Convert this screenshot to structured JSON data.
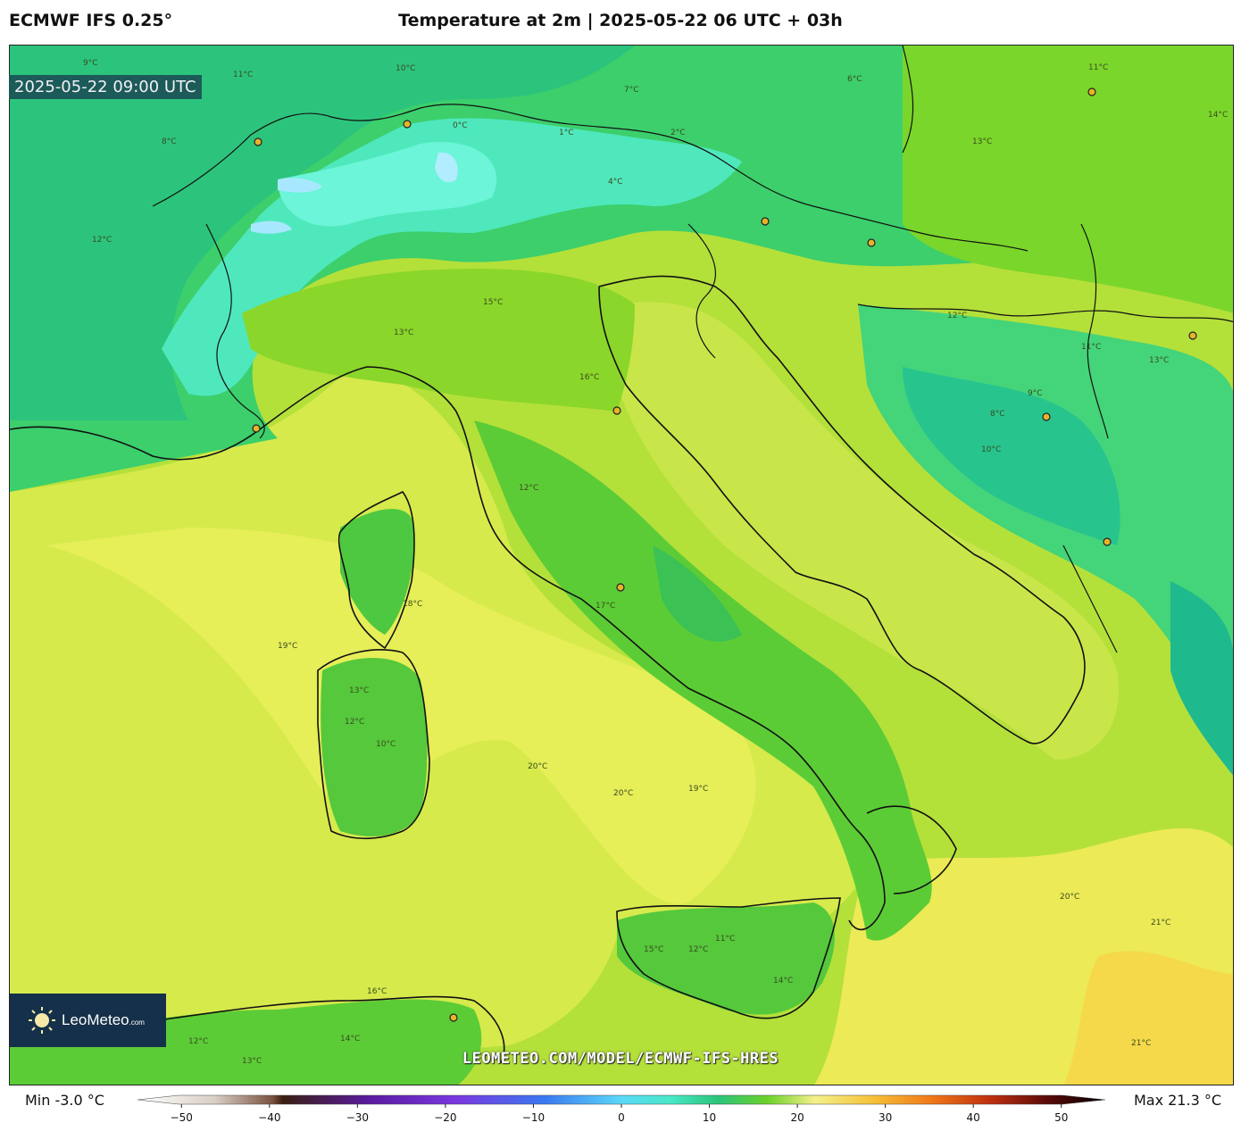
{
  "header": {
    "model": "ECMWF IFS 0.25°",
    "title": "Temperature at 2m | 2025-05-22 06 UTC + 03h"
  },
  "map": {
    "valid_time": "2025-05-22 09:00 UTC",
    "watermark": "LEOMETEO.COM/MODEL/ECMWF-IFS-HRES",
    "logo": {
      "brand": "LeoMeteo",
      "suffix": ".com"
    },
    "contour_labels": [
      "10°C",
      "9°C",
      "8°C",
      "11°C",
      "0°C",
      "1°C",
      "2°C",
      "4°C",
      "7°C",
      "6°C",
      "11°C",
      "12°C",
      "13°C",
      "14°C",
      "15°C",
      "16°C",
      "13°C",
      "12°C",
      "9°C",
      "8°C",
      "10°C",
      "11°C",
      "12°C",
      "13°C",
      "17°C",
      "18°C",
      "19°C",
      "20°C",
      "19°C",
      "20°C",
      "21°C",
      "21°C",
      "20°C",
      "15°C",
      "14°C",
      "12°C",
      "11°C",
      "10°C",
      "13°C",
      "12°C",
      "14°C",
      "16°C",
      "13°C",
      "12°C"
    ],
    "colors": {
      "cold": "#4df2c8",
      "cool": "#22c98c",
      "mild": "#6fd21f",
      "warm": "#c6e63a",
      "sea": "#e9ee5a",
      "hot": "#f5dc4a"
    }
  },
  "legend": {
    "min_label": "Min -3.0 °C",
    "max_label": "Max 21.3 °C",
    "ticks": [
      "−50",
      "−40",
      "−30",
      "−20",
      "−10",
      "0",
      "10",
      "20",
      "30",
      "40",
      "50"
    ],
    "tick_values": [
      -50,
      -40,
      -30,
      -20,
      -10,
      0,
      10,
      20,
      30,
      40,
      50
    ],
    "range": [
      -55,
      55
    ]
  }
}
